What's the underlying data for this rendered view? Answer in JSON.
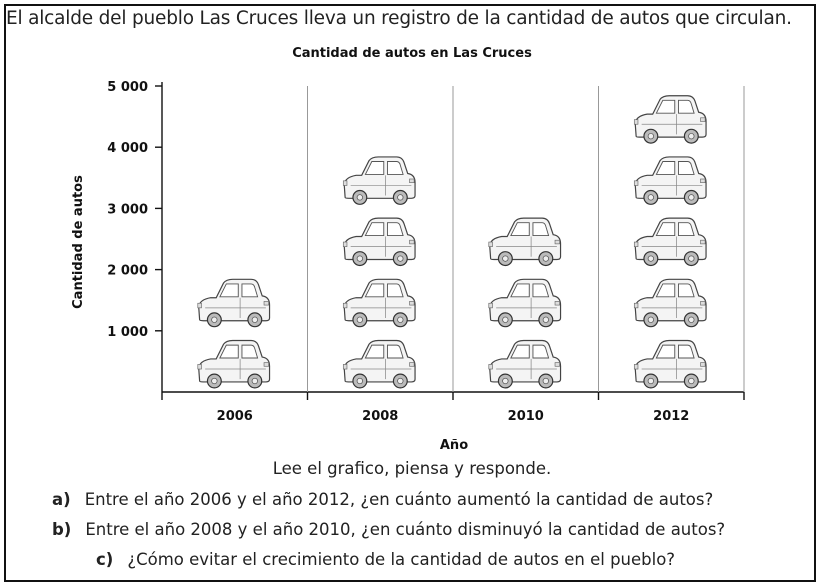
{
  "intro": "El alcalde del pueblo Las Cruces lleva un registro de la cantidad de autos que circulan.",
  "chart_data": {
    "type": "bar",
    "title": "Cantidad de autos en Las Cruces",
    "xlabel": "Año",
    "ylabel": "Cantidad de autos",
    "categories": [
      "2006",
      "2008",
      "2010",
      "2012"
    ],
    "values": [
      2000,
      4000,
      3000,
      5000
    ],
    "icon_value": 1000,
    "icon": "car-icon",
    "yticks": [
      1000,
      2000,
      3000,
      4000,
      5000
    ],
    "ytick_labels": [
      "1 000",
      "2 000",
      "3 000",
      "4 000",
      "5 000"
    ],
    "ylim": [
      0,
      5000
    ],
    "grid": "vertical separators between categories"
  },
  "instructions": "Lee el grafico, piensa y responde.",
  "questions": [
    {
      "label": "a)",
      "text": "Entre el año 2006 y el año 2012, ¿en cuánto aumentó la cantidad de autos?"
    },
    {
      "label": "b)",
      "text": "Entre el año 2008 y el año 2010, ¿en cuánto disminuyó la cantidad de autos?"
    },
    {
      "label": "c)",
      "text": "¿Cómo evitar el crecimiento de la cantidad de autos en el pueblo?"
    }
  ]
}
